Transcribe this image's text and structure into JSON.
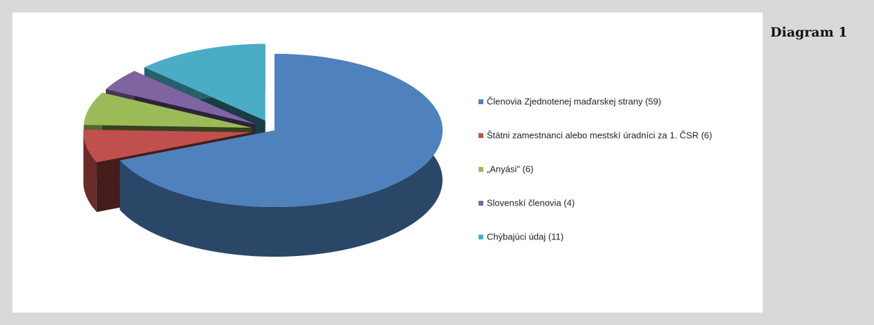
{
  "caption": "Diagram 1",
  "chart_data": {
    "type": "pie",
    "categories": [
      "Členovia Zjednotenej maďarskej strany (59)",
      "Štátni zamestnanci alebo mestskí úradníci za 1. ČSR (6)",
      "„Anyási\" (6)",
      "Slovenskí členovia (4)",
      "Chýbajúci údaj (11)"
    ],
    "values": [
      59,
      6,
      6,
      4,
      11
    ],
    "colors": [
      "#4f81bd",
      "#c0504d",
      "#9bbb59",
      "#8064a2",
      "#4bacc6"
    ],
    "legend": "right"
  }
}
